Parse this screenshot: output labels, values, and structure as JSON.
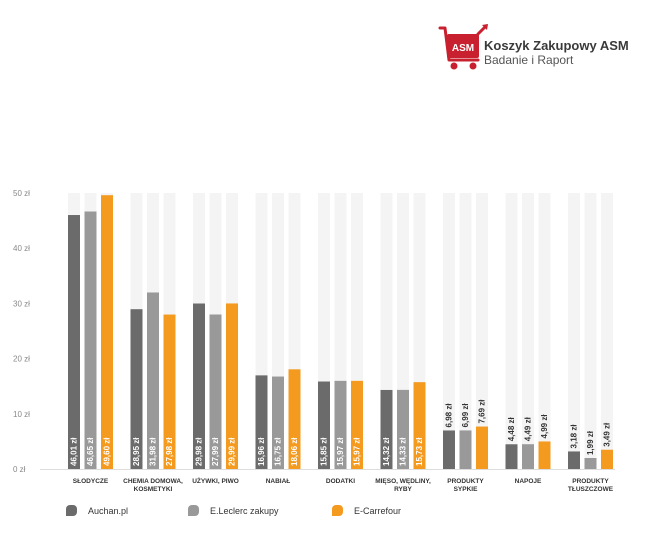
{
  "logo": {
    "badge_text": "ASM",
    "title": "Koszyk Zakupowy ASM",
    "subtitle": "Badanie i Raport",
    "icon": "shopping-cart-icon",
    "color": "#c8202f"
  },
  "chart_data": {
    "type": "bar",
    "title": "",
    "xlabel": "",
    "ylabel": "",
    "ylim": [
      0,
      50
    ],
    "yticks": [
      0,
      10,
      20,
      30,
      40,
      50
    ],
    "ytick_labels": [
      "0 zł",
      "10 zł",
      "20 zł",
      "30 zł",
      "40 zł",
      "50 zł"
    ],
    "grid": false,
    "legend_position": "bottom",
    "categories": [
      [
        "SŁODYCZE"
      ],
      [
        "CHEMIA DOMOWA,",
        "KOSMETYKI"
      ],
      [
        "UŻYWKI, PIWO"
      ],
      [
        "NABIAŁ"
      ],
      [
        "DODATKI"
      ],
      [
        "MIĘSO, WĘDLINY,",
        "RYBY"
      ],
      [
        "PRODUKTY",
        "SYPKIE"
      ],
      [
        "NAPOJE"
      ],
      [
        "PRODUKTY",
        "TŁUSZCZOWE"
      ]
    ],
    "series": [
      {
        "name": "Auchan.pl",
        "color": "#6b6b6b",
        "values": [
          46.01,
          28.95,
          29.98,
          16.96,
          15.85,
          14.32,
          6.98,
          4.48,
          3.18
        ],
        "labels": [
          "46,01 zł",
          "28,95 zł",
          "29,98 zł",
          "16,96 zł",
          "15,85 zł",
          "14,32 zł",
          "6,98 zł",
          "4,48 zł",
          "3,18 zł"
        ]
      },
      {
        "name": "E.Leclerc zakupy",
        "color": "#999999",
        "values": [
          46.65,
          31.98,
          27.99,
          16.75,
          15.97,
          14.33,
          6.99,
          4.49,
          1.99
        ],
        "labels": [
          "46,65 zł",
          "31,98 zł",
          "27,99 zł",
          "16,75 zł",
          "15,97 zł",
          "14,33 zł",
          "6,99 zł",
          "4,49 zł",
          "1,99 zł"
        ]
      },
      {
        "name": "E-Carrefour",
        "color": "#f39a1f",
        "values": [
          49.6,
          27.98,
          29.99,
          18.06,
          15.97,
          15.73,
          7.69,
          4.99,
          3.49
        ],
        "labels": [
          "49,60 zł",
          "27,98 zł",
          "29,99 zł",
          "18,06 zł",
          "15,97 zł",
          "15,73 zł",
          "7,69 zł",
          "4,99 zł",
          "3,49 zł"
        ]
      }
    ]
  }
}
